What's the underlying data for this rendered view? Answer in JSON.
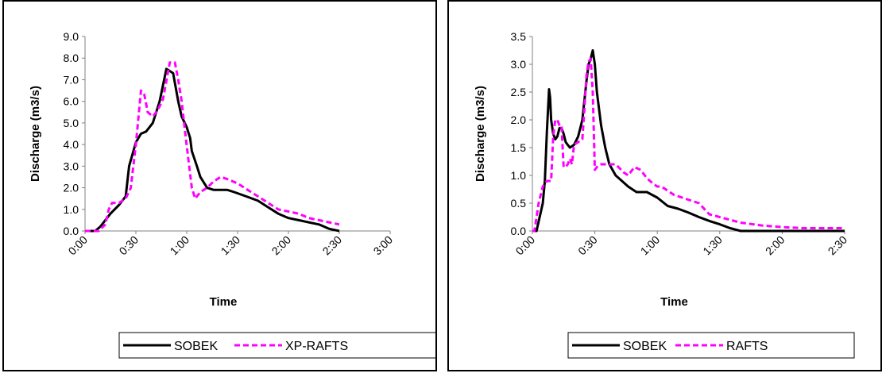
{
  "chart_data": [
    {
      "type": "line",
      "xlabel": "Time",
      "ylabel": "Discharge (m3/s)",
      "xlim": [
        0,
        180
      ],
      "ylim": [
        0,
        9
      ],
      "x_ticks": [
        "0:00",
        "0:30",
        "1:00",
        "1:30",
        "2:00",
        "2:30",
        "3:00"
      ],
      "y_ticks": [
        "0.0",
        "1.0",
        "2.0",
        "3.0",
        "4.0",
        "5.0",
        "6.0",
        "7.0",
        "8.0",
        "9.0"
      ],
      "legend_position": "bottom",
      "series": [
        {
          "name": "SOBEK",
          "color": "#000000",
          "dash": "solid",
          "x": [
            0,
            6,
            9,
            15,
            20,
            24,
            26,
            30,
            33,
            36,
            40,
            44,
            48,
            52,
            55,
            57,
            60,
            62,
            63,
            66,
            68,
            72,
            76,
            80,
            84,
            88,
            95,
            102,
            108,
            114,
            120,
            126,
            132,
            138,
            144,
            150
          ],
          "y": [
            0,
            0,
            0.2,
            0.8,
            1.2,
            1.6,
            3.0,
            4.1,
            4.5,
            4.6,
            5.0,
            6.0,
            7.5,
            7.3,
            6.0,
            5.3,
            4.8,
            4.3,
            3.7,
            3.0,
            2.5,
            2.0,
            1.9,
            1.9,
            1.9,
            1.8,
            1.6,
            1.4,
            1.1,
            0.8,
            0.6,
            0.5,
            0.4,
            0.3,
            0.1,
            0.0
          ]
        },
        {
          "name": "XP-RAFTS",
          "color": "#ff00ff",
          "dash": "dashed",
          "x": [
            0,
            8,
            12,
            14,
            16,
            20,
            24,
            27,
            30,
            33,
            35,
            37,
            40,
            43,
            46,
            50,
            53,
            55,
            57,
            59,
            61,
            63,
            65,
            68,
            72,
            76,
            80,
            84,
            90,
            96,
            102,
            108,
            114,
            120,
            126,
            132,
            138,
            144,
            150
          ],
          "y": [
            0,
            0,
            0.3,
            1.0,
            1.3,
            1.3,
            1.5,
            2.0,
            4.0,
            6.5,
            6.3,
            5.5,
            5.3,
            5.6,
            6.1,
            7.8,
            7.8,
            7.0,
            6.0,
            4.6,
            3.3,
            2.0,
            1.5,
            1.8,
            2.0,
            2.3,
            2.5,
            2.4,
            2.2,
            1.9,
            1.6,
            1.3,
            1.0,
            0.9,
            0.8,
            0.6,
            0.5,
            0.4,
            0.3
          ]
        }
      ]
    },
    {
      "type": "line",
      "xlabel": "Time",
      "ylabel": "Discharge (m3/s)",
      "xlim": [
        0,
        150
      ],
      "ylim": [
        0,
        3.5
      ],
      "x_ticks": [
        "0:00",
        "0:30",
        "1:00",
        "1:30",
        "2:00",
        "2:30"
      ],
      "y_ticks": [
        "0.0",
        "0.5",
        "1.0",
        "1.5",
        "2.0",
        "2.5",
        "3.0",
        "3.5"
      ],
      "legend_position": "bottom",
      "series": [
        {
          "name": "SOBEK",
          "color": "#000000",
          "dash": "solid",
          "x": [
            0,
            2,
            5,
            6,
            7,
            8,
            8.5,
            9,
            10,
            11,
            12,
            13,
            14,
            15,
            16,
            17,
            18,
            20,
            22,
            24,
            26,
            27,
            28,
            29,
            30,
            31,
            33,
            35,
            37,
            40,
            43,
            46,
            50,
            55,
            60,
            65,
            70,
            75,
            80,
            85,
            90,
            95,
            98,
            100,
            105,
            110,
            120,
            130,
            140,
            150
          ],
          "y": [
            0,
            0,
            0.5,
            0.9,
            1.8,
            2.55,
            2.4,
            2.0,
            1.75,
            1.65,
            1.7,
            1.85,
            1.85,
            1.75,
            1.6,
            1.55,
            1.5,
            1.55,
            1.7,
            2.0,
            2.7,
            3.0,
            3.1,
            3.25,
            3.0,
            2.5,
            1.9,
            1.5,
            1.2,
            1.0,
            0.9,
            0.8,
            0.7,
            0.7,
            0.6,
            0.45,
            0.4,
            0.33,
            0.25,
            0.18,
            0.12,
            0.05,
            0.02,
            0,
            0,
            0,
            0,
            0,
            0,
            0
          ]
        },
        {
          "name": "RAFTS",
          "color": "#ff00ff",
          "dash": "dashed",
          "x": [
            0,
            1,
            3,
            5,
            7,
            9,
            10,
            11,
            12,
            13,
            14,
            15,
            16,
            17,
            18,
            19,
            20,
            22,
            24,
            25,
            26,
            27,
            28,
            29,
            30,
            31,
            33,
            36,
            40,
            44,
            46,
            49,
            52,
            55,
            58,
            60,
            62,
            64,
            68,
            72,
            76,
            80,
            85,
            90,
            95,
            100,
            110,
            120,
            130,
            140,
            150
          ],
          "y": [
            0,
            0,
            0.5,
            0.8,
            0.9,
            0.9,
            1.7,
            2.0,
            2.0,
            1.9,
            1.9,
            1.15,
            1.15,
            1.2,
            1.3,
            1.2,
            1.55,
            1.6,
            1.65,
            2.2,
            2.8,
            3.05,
            3.1,
            2.5,
            1.1,
            1.15,
            1.2,
            1.2,
            1.2,
            1.05,
            1.0,
            1.15,
            1.1,
            0.95,
            0.85,
            0.8,
            0.8,
            0.75,
            0.65,
            0.6,
            0.55,
            0.5,
            0.3,
            0.25,
            0.2,
            0.15,
            0.1,
            0.07,
            0.05,
            0.05,
            0.05
          ]
        }
      ]
    }
  ]
}
